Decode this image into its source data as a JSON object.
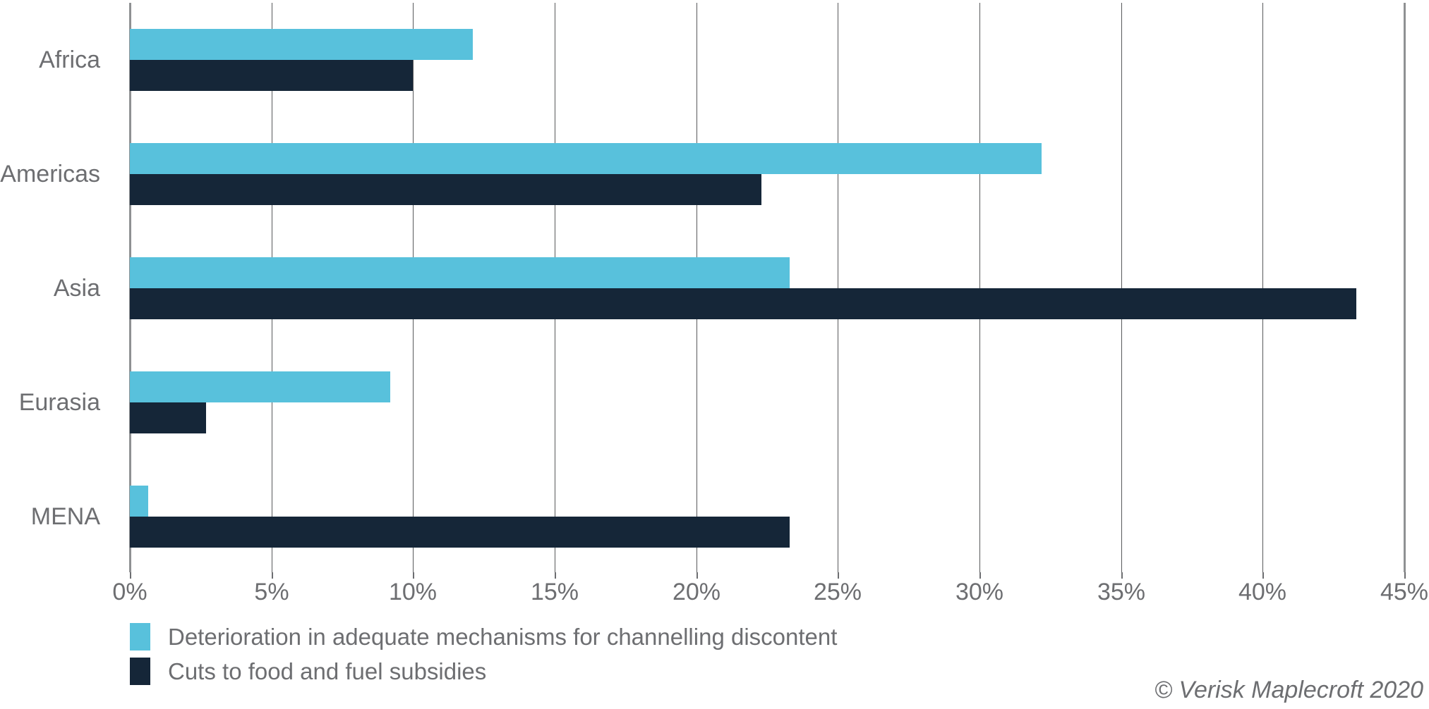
{
  "chart_data": {
    "type": "bar",
    "orientation": "horizontal",
    "title": "",
    "xlabel": "",
    "ylabel": "",
    "categories": [
      "Africa",
      "Americas",
      "Asia",
      "Eurasia",
      "MENA"
    ],
    "series": [
      {
        "name": "Deterioration in adequate mechanisms for channelling discontent",
        "color": "#58c1dc",
        "values": [
          12.1,
          32.2,
          23.3,
          9.2,
          0.65
        ]
      },
      {
        "name": "Cuts to food and fuel subsidies",
        "color": "#152638",
        "values": [
          10,
          22.3,
          43.3,
          2.7,
          23.3
        ]
      }
    ],
    "x_axis": {
      "min": 0,
      "max": 45,
      "step": 5,
      "tick_labels": [
        "0%",
        "5%",
        "10%",
        "15%",
        "20%",
        "25%",
        "30%",
        "35%",
        "40%",
        "45%"
      ]
    },
    "grid": "vertical-only",
    "legend_position": "bottom-left"
  },
  "footer": {
    "copyright": "© Verisk Maplecroft 2020"
  },
  "colors": {
    "series1": "#58c1dc",
    "series2": "#152638",
    "text": "#6d6e71",
    "gridline": "#58595b",
    "axis_edge": "#8f9193"
  }
}
